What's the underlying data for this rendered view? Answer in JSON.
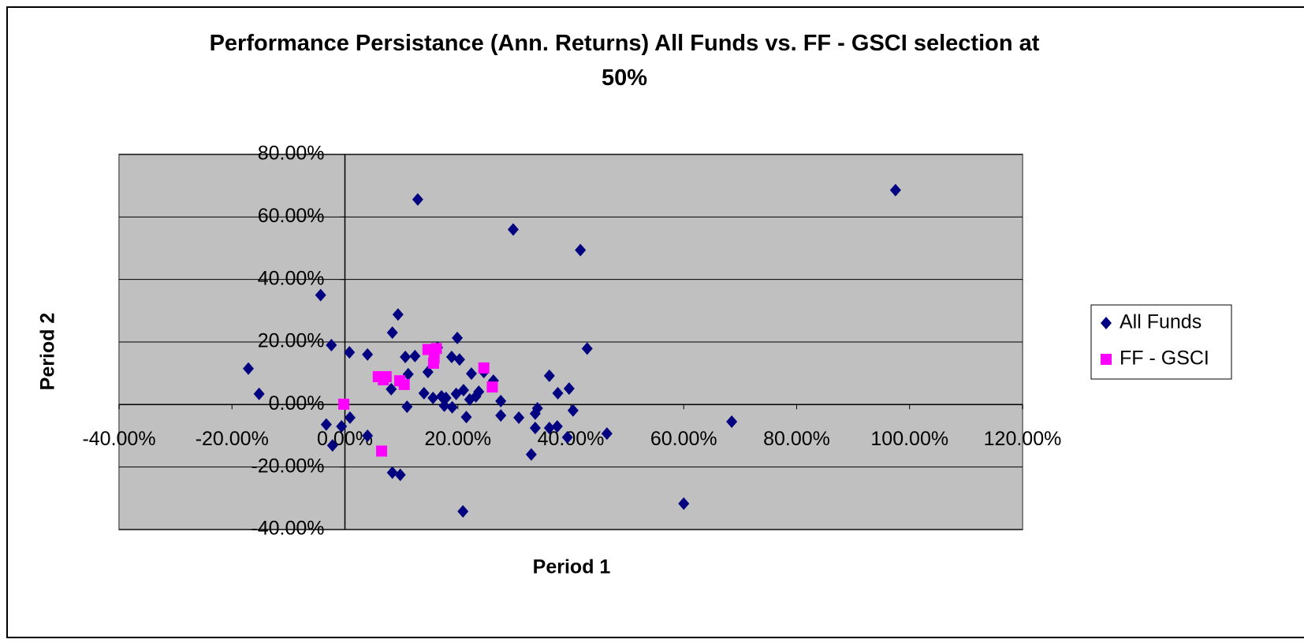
{
  "chart_data": {
    "type": "scatter",
    "title": "Performance Persistance (Ann. Returns) All Funds vs. FF - GSCI selection at 50%",
    "x_label": "Period 1",
    "y_label": "Period 2",
    "xlim": [
      -40,
      120
    ],
    "ylim": [
      -40,
      80
    ],
    "xticks": [
      {
        "value": -40,
        "label": "-40.00%"
      },
      {
        "value": -20,
        "label": "-20.00%"
      },
      {
        "value": 0,
        "label": "0.00%"
      },
      {
        "value": 20,
        "label": "20.00%"
      },
      {
        "value": 40,
        "label": "40.00%"
      },
      {
        "value": 60,
        "label": "60.00%"
      },
      {
        "value": 80,
        "label": "80.00%"
      },
      {
        "value": 100,
        "label": "100.00%"
      },
      {
        "value": 120,
        "label": "120.00%"
      }
    ],
    "yticks": [
      {
        "value": -40,
        "label": "-40.00%"
      },
      {
        "value": -20,
        "label": "-20.00%"
      },
      {
        "value": 0,
        "label": "0.00%"
      },
      {
        "value": 20,
        "label": "20.00%"
      },
      {
        "value": 40,
        "label": "40.00%"
      },
      {
        "value": 60,
        "label": "60.00%"
      },
      {
        "value": 80,
        "label": "80.00%"
      }
    ],
    "grid": true,
    "legend": "right",
    "series": [
      {
        "name": "All Funds",
        "color": "#000080",
        "marker": "diamond",
        "x": [
          97.5,
          12.9,
          29.8,
          41.7,
          -4.3,
          9.4,
          8.4,
          19.9,
          -2.4,
          42.9,
          16.4,
          0.8,
          4.0,
          -17.1,
          10.7,
          12.4,
          20.3,
          18.9,
          14.7,
          11.2,
          22.4,
          36.2,
          24.6,
          -15.2,
          8.2,
          14.0,
          15.6,
          17.1,
          17.9,
          19.7,
          21.0,
          22.1,
          23.2,
          23.7,
          26.3,
          26.1,
          27.6,
          37.7,
          39.7,
          11.0,
          17.6,
          19.0,
          27.6,
          30.8,
          33.7,
          34.1,
          40.4,
          0.9,
          21.5,
          -3.3,
          -0.6,
          33.7,
          36.2,
          37.6,
          39.4,
          46.4,
          68.5,
          4.0,
          -2.2,
          33.0,
          8.4,
          9.8,
          60.0,
          20.9
        ],
        "values": [
          68.6,
          65.6,
          56.0,
          49.4,
          35.0,
          28.8,
          23.0,
          21.3,
          19.0,
          17.9,
          18.2,
          16.7,
          16.0,
          11.5,
          15.2,
          15.5,
          14.4,
          15.2,
          10.4,
          9.7,
          9.9,
          9.2,
          10.4,
          3.4,
          4.9,
          3.6,
          2.1,
          2.6,
          2.1,
          3.4,
          4.6,
          1.6,
          2.6,
          4.1,
          7.6,
          5.9,
          1.1,
          3.6,
          5.1,
          -0.7,
          -0.4,
          -0.9,
          -3.5,
          -4.2,
          -2.9,
          -1.2,
          -1.9,
          -4.2,
          -4.0,
          -6.4,
          -7.0,
          -7.5,
          -7.5,
          -7.0,
          -10.5,
          -9.3,
          -5.5,
          -10.0,
          -13.1,
          -16.0,
          -21.8,
          -22.5,
          -31.7,
          -34.2
        ]
      },
      {
        "name": "FF - GSCI",
        "color": "#FF00FF",
        "marker": "square",
        "x": [
          -0.2,
          5.9,
          6.8,
          7.3,
          9.7,
          10.5,
          6.5,
          14.7,
          16.2,
          15.8,
          15.7,
          24.6,
          26.1
        ],
        "values": [
          0.1,
          8.9,
          7.9,
          8.9,
          7.6,
          6.4,
          -14.9,
          17.6,
          17.9,
          14.9,
          13.2,
          11.7,
          5.6
        ]
      }
    ]
  }
}
